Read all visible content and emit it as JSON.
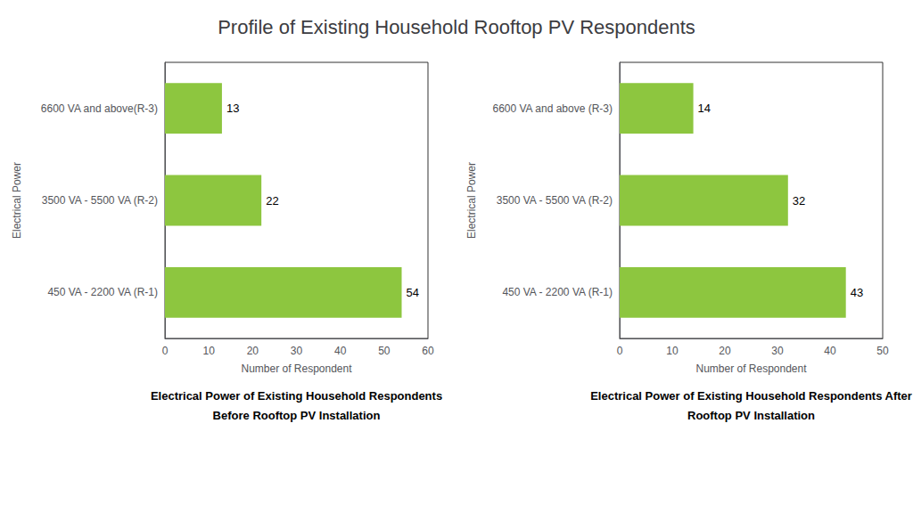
{
  "title": "Profile of Existing Household Rooftop PV Respondents",
  "chart_data": [
    {
      "type": "bar",
      "orientation": "horizontal",
      "categories": [
        "450 VA - 2200 VA (R-1)",
        "3500 VA - 5500 VA (R-2)",
        "6600 VA and above(R-3)"
      ],
      "values": [
        54,
        22,
        13
      ],
      "color": "#8dc63f",
      "xlim": [
        0,
        60
      ],
      "xticks": [
        0,
        10,
        20,
        30,
        40,
        50,
        60
      ],
      "xlabel": "Number of Respondent",
      "ylabel": "Electrical Power",
      "data_labels": true,
      "grid": false,
      "annotations": [
        "Electrical Power of Existing Household Respondents",
        "Before Rooftop PV Installation"
      ]
    },
    {
      "type": "bar",
      "orientation": "horizontal",
      "categories": [
        "450 VA - 2200 VA (R-1)",
        "3500 VA - 5500 VA (R-2)",
        "6600 VA and above (R-3)"
      ],
      "values": [
        43,
        32,
        14
      ],
      "color": "#8dc63f",
      "xlim": [
        0,
        50
      ],
      "xticks": [
        0,
        10,
        20,
        30,
        40,
        50
      ],
      "xlabel": "Number of Respondent",
      "ylabel": "Electrical Power",
      "data_labels": true,
      "grid": false,
      "annotations": [
        "Electrical Power of Existing Household Respondents After",
        "Rooftop PV Installation"
      ]
    }
  ]
}
